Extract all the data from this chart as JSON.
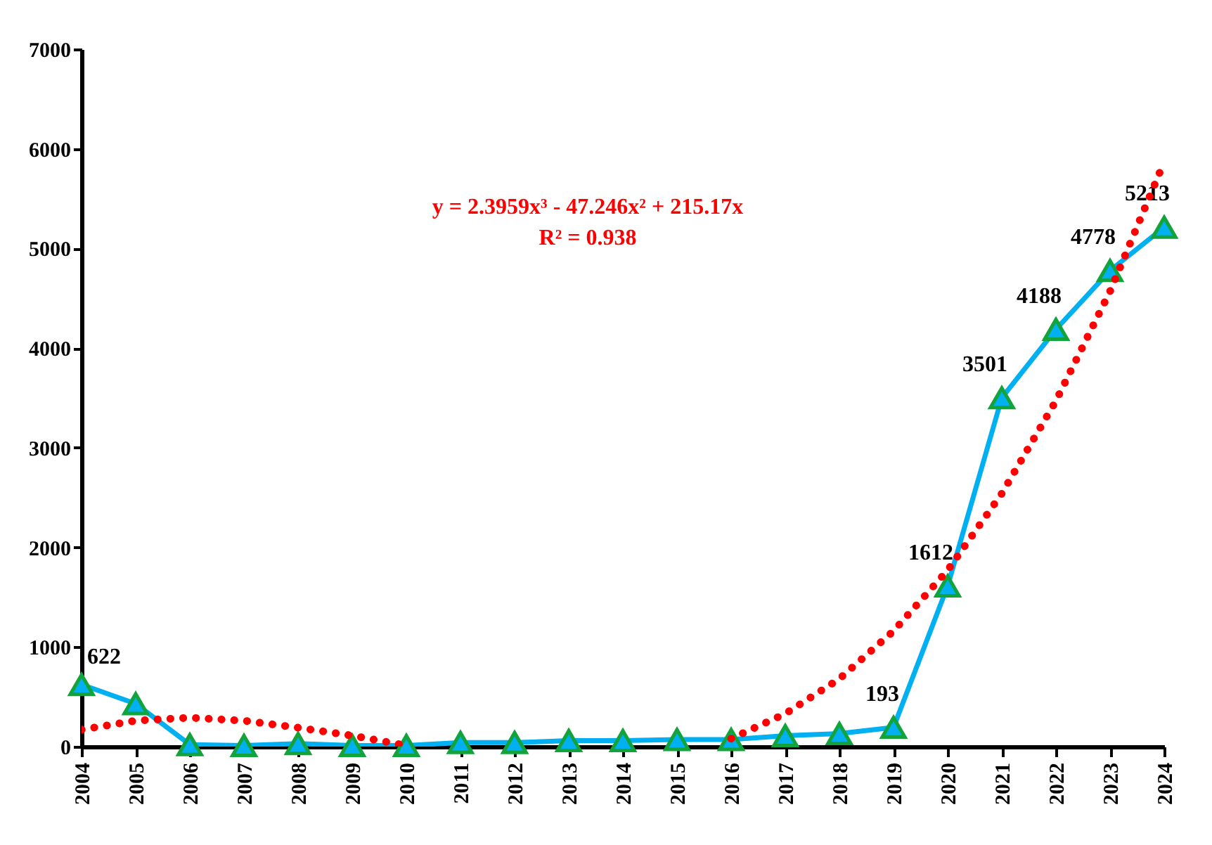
{
  "chart_data": {
    "type": "line",
    "categories": [
      "2004",
      "2005",
      "2006",
      "2007",
      "2008",
      "2009",
      "2010",
      "2011",
      "2012",
      "2013",
      "2014",
      "2015",
      "2016",
      "2017",
      "2018",
      "2019",
      "2020",
      "2021",
      "2022",
      "2023",
      "2024"
    ],
    "series": [
      {
        "color": "#00b0f0",
        "marker": "triangle",
        "line_style": "solid",
        "values": [
          622,
          430,
          20,
          10,
          30,
          10,
          10,
          40,
          40,
          60,
          60,
          70,
          70,
          110,
          130,
          193,
          1612,
          3501,
          4188,
          4778,
          5213
        ],
        "value_labels": [
          "622",
          null,
          null,
          null,
          null,
          null,
          null,
          null,
          null,
          null,
          null,
          null,
          null,
          null,
          null,
          "193",
          "1612",
          "3501",
          "4188",
          "4778",
          "5213"
        ]
      },
      {
        "color": "#ff0000",
        "marker": "none",
        "line_style": "dotted",
        "values": [
          170,
          260,
          290,
          260,
          190,
          110,
          10,
          null,
          null,
          null,
          null,
          null,
          80,
          330,
          680,
          1160,
          1770,
          2540,
          3470,
          4570,
          5870
        ]
      }
    ],
    "ylim": [
      0,
      7000
    ],
    "yticks": [
      0,
      1000,
      2000,
      3000,
      4000,
      5000,
      6000,
      7000
    ],
    "grid": false,
    "legend": false,
    "annotations": [
      "y = 2.3959x³ - 47.246x² + 215.17x",
      "R² = 0.938"
    ]
  }
}
